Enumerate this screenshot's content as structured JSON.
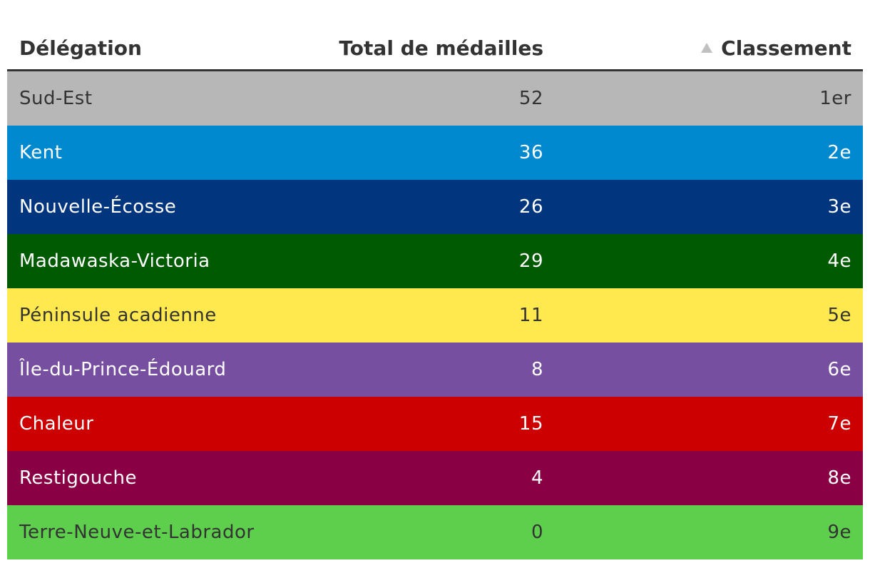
{
  "header": {
    "delegation": "Délégation",
    "total": "Total de médailles",
    "classement": "Classement",
    "sort_icon": "sort-ascending-triangle-icon"
  },
  "chart_data": {
    "type": "table",
    "columns": [
      "Délégation",
      "Total de médailles",
      "Classement"
    ],
    "sorted_by": "Classement",
    "sort_direction": "ascending",
    "rows": [
      {
        "delegation": "Sud-Est",
        "total": "52",
        "rank": "1er",
        "bg": "#b7b7b7",
        "fg": "#333333"
      },
      {
        "delegation": "Kent",
        "total": "36",
        "rank": "2e",
        "bg": "#0189d0",
        "fg": "#ffffff"
      },
      {
        "delegation": "Nouvelle-Écosse",
        "total": "26",
        "rank": "3e",
        "bg": "#01367e",
        "fg": "#ffffff"
      },
      {
        "delegation": "Madawaska-Victoria",
        "total": "29",
        "rank": "4e",
        "bg": "#005a01",
        "fg": "#ffffff"
      },
      {
        "delegation": "Péninsule acadienne",
        "total": "11",
        "rank": "5e",
        "bg": "#ffe94e",
        "fg": "#333333"
      },
      {
        "delegation": "Île-du-Prince-Édouard",
        "total": "8",
        "rank": "6e",
        "bg": "#774fa0",
        "fg": "#ffffff"
      },
      {
        "delegation": "Chaleur",
        "total": "15",
        "rank": "7e",
        "bg": "#cc0000",
        "fg": "#ffffff"
      },
      {
        "delegation": "Restigouche",
        "total": "4",
        "rank": "8e",
        "bg": "#8a0045",
        "fg": "#ffffff"
      },
      {
        "delegation": "Terre-Neuve-et-Labrador",
        "total": "0",
        "rank": "9e",
        "bg": "#5ecf4c",
        "fg": "#333333"
      }
    ]
  }
}
